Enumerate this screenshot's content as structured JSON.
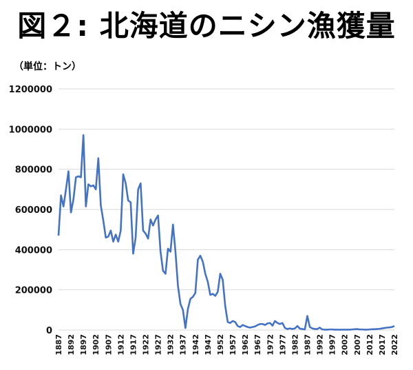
{
  "chart_data": {
    "type": "line",
    "title": "図２: 北海道のニシン漁獲量",
    "unit_label": "（単位：トン）",
    "xlabel": "",
    "ylabel": "",
    "ylim": [
      0,
      1200000
    ],
    "yticks": [
      "0",
      "200000",
      "400000",
      "600000",
      "800000",
      "1000000",
      "1200000"
    ],
    "xticks": [
      "1887",
      "1892",
      "1897",
      "1902",
      "1907",
      "1912",
      "1917",
      "1922",
      "1927",
      "1932",
      "1937",
      "1942",
      "1947",
      "1952",
      "1957",
      "1962",
      "1967",
      "1972",
      "1977",
      "1982",
      "1987",
      "1992",
      "1997",
      "2002",
      "2007",
      "2012",
      "2017",
      "2022"
    ],
    "grid": true,
    "line_color": "#4472C4",
    "series": [
      {
        "x": [
          1887,
          1888,
          1889,
          1890,
          1891,
          1892,
          1893,
          1894,
          1895,
          1896,
          1897,
          1898,
          1899,
          1900,
          1901,
          1902,
          1903,
          1904,
          1905,
          1906,
          1907,
          1908,
          1909,
          1910,
          1911,
          1912,
          1913,
          1914,
          1915,
          1916,
          1917,
          1918,
          1919,
          1920,
          1921,
          1922,
          1923,
          1924,
          1925,
          1926,
          1927,
          1928,
          1929,
          1930,
          1931,
          1932,
          1933,
          1934,
          1935,
          1936,
          1937,
          1938,
          1939,
          1940,
          1941,
          1942,
          1943,
          1944,
          1945,
          1946,
          1947,
          1948,
          1949,
          1950,
          1951,
          1952,
          1953,
          1954,
          1955,
          1956,
          1957,
          1958,
          1959,
          1960,
          1961,
          1962,
          1963,
          1964,
          1965,
          1966,
          1967,
          1968,
          1969,
          1970,
          1971,
          1972,
          1973,
          1974,
          1975,
          1976,
          1977,
          1978,
          1979,
          1980,
          1981,
          1982,
          1983,
          1984,
          1985,
          1986,
          1987,
          1988,
          1989,
          1990,
          1991,
          1992,
          1993,
          1994,
          1995,
          1996,
          1997,
          1998,
          1999,
          2000,
          2001,
          2002,
          2003,
          2004,
          2005,
          2006,
          2007,
          2008,
          2009,
          2010,
          2011,
          2012,
          2013,
          2014,
          2015,
          2016,
          2017,
          2018,
          2019,
          2020,
          2021,
          2022
        ],
        "values": [
          470000,
          670000,
          615000,
          700000,
          790000,
          585000,
          650000,
          760000,
          765000,
          760000,
          970000,
          615000,
          725000,
          715000,
          720000,
          700000,
          855000,
          620000,
          545000,
          460000,
          465000,
          495000,
          440000,
          475000,
          440000,
          495000,
          775000,
          730000,
          645000,
          635000,
          380000,
          460000,
          700000,
          730000,
          495000,
          480000,
          455000,
          550000,
          520000,
          550000,
          570000,
          390000,
          295000,
          280000,
          405000,
          390000,
          525000,
          390000,
          220000,
          130000,
          100000,
          10000,
          105000,
          155000,
          165000,
          185000,
          350000,
          370000,
          340000,
          280000,
          240000,
          175000,
          180000,
          170000,
          190000,
          280000,
          250000,
          120000,
          40000,
          35000,
          45000,
          40000,
          20000,
          15000,
          25000,
          20000,
          15000,
          12000,
          15000,
          18000,
          25000,
          30000,
          30000,
          25000,
          33000,
          35000,
          22000,
          45000,
          35000,
          30000,
          35000,
          10000,
          5000,
          8000,
          5000,
          8000,
          20000,
          7000,
          5000,
          3000,
          70000,
          15000,
          8000,
          5000,
          5000,
          12000,
          3000,
          2000,
          2000,
          3000,
          3000,
          2000,
          2000,
          1500,
          2000,
          2000,
          2000,
          2000,
          3000,
          4000,
          5000,
          3000,
          3000,
          2000,
          2000,
          3000,
          4000,
          4000,
          5000,
          6000,
          8000,
          10000,
          12000,
          13000,
          15000,
          20000
        ]
      }
    ]
  }
}
